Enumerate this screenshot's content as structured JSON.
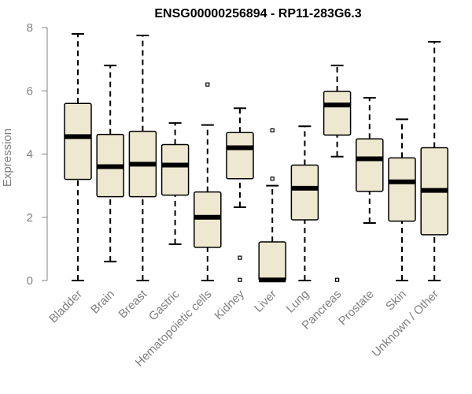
{
  "chart_data": {
    "type": "boxplot",
    "title": "ENSG00000256894 - RP11-283G6.3",
    "xlabel": "",
    "ylabel": "Expression",
    "ylim": [
      0,
      8
    ],
    "yticks": [
      "0",
      "2",
      "4",
      "6",
      "8"
    ],
    "box_fill": "#efe8d0",
    "categories": [
      "Bladder",
      "Brain",
      "Breast",
      "Gastric",
      "Hematopoietic cells",
      "Kidney",
      "Liver",
      "Lung",
      "Pancreas",
      "Prostate",
      "Skin",
      "Unknown / Other"
    ],
    "boxes": [
      {
        "min": 0.0,
        "q1": 3.2,
        "median": 4.55,
        "q3": 5.6,
        "max": 7.8,
        "outliers": []
      },
      {
        "min": 0.6,
        "q1": 2.65,
        "median": 3.6,
        "q3": 4.62,
        "max": 6.8,
        "outliers": []
      },
      {
        "min": 0.0,
        "q1": 2.65,
        "median": 3.68,
        "q3": 4.72,
        "max": 7.75,
        "outliers": []
      },
      {
        "min": 1.15,
        "q1": 2.7,
        "median": 3.65,
        "q3": 4.3,
        "max": 4.98,
        "outliers": []
      },
      {
        "min": 0.0,
        "q1": 1.05,
        "median": 2.0,
        "q3": 2.8,
        "max": 4.92,
        "outliers": [
          6.2
        ]
      },
      {
        "min": 2.32,
        "q1": 3.22,
        "median": 4.2,
        "q3": 4.68,
        "max": 5.45,
        "outliers": [
          0.72,
          0.02
        ]
      },
      {
        "min": 0.0,
        "q1": 0.0,
        "median": 0.02,
        "q3": 1.22,
        "max": 3.0,
        "outliers": [
          3.22,
          4.75
        ]
      },
      {
        "min": 0.0,
        "q1": 1.92,
        "median": 2.92,
        "q3": 3.65,
        "max": 4.88,
        "outliers": []
      },
      {
        "min": 3.92,
        "q1": 4.6,
        "median": 5.55,
        "q3": 5.98,
        "max": 6.8,
        "outliers": [
          0.02
        ]
      },
      {
        "min": 1.82,
        "q1": 2.82,
        "median": 3.85,
        "q3": 4.48,
        "max": 5.78,
        "outliers": []
      },
      {
        "min": 0.0,
        "q1": 1.88,
        "median": 3.12,
        "q3": 3.88,
        "max": 5.1,
        "outliers": []
      },
      {
        "min": 0.0,
        "q1": 1.45,
        "median": 2.85,
        "q3": 4.2,
        "max": 7.55,
        "outliers": []
      }
    ]
  }
}
